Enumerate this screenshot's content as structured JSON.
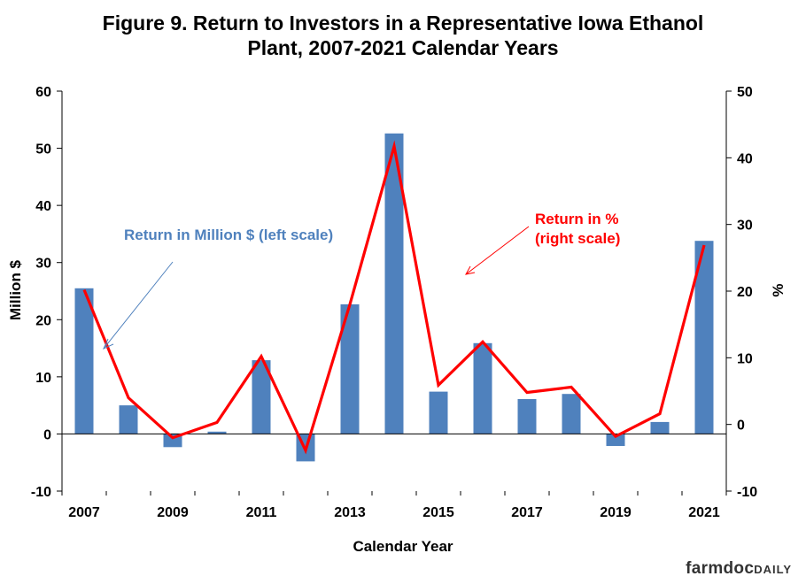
{
  "chart_data": {
    "type": "bar+line",
    "title_line1": "Figure 9. Return to Investors in a Representative Iowa Ethanol",
    "title_line2": "Plant, 2007-2021 Calendar Years",
    "xlabel": "Calendar Year",
    "ylabel_left": "Million $",
    "ylabel_right": "%",
    "years": [
      2007,
      2008,
      2009,
      2010,
      2011,
      2012,
      2013,
      2014,
      2015,
      2016,
      2017,
      2018,
      2019,
      2020,
      2021
    ],
    "x_tick_labels": [
      "2007",
      "2009",
      "2011",
      "2013",
      "2015",
      "2017",
      "2019",
      "2021"
    ],
    "y_left_ticks": [
      "60",
      "50",
      "40",
      "30",
      "20",
      "10",
      "0",
      "-10"
    ],
    "y_right_ticks": [
      "50",
      "40",
      "30",
      "20",
      "10",
      "0",
      "-10"
    ],
    "ylim_left": [
      -10,
      60
    ],
    "ylim_right": [
      -10,
      50
    ],
    "series": [
      {
        "name": "Return in Million $ (left scale)",
        "kind": "bar",
        "axis": "left",
        "color": "#4f81bd",
        "values": [
          25.5,
          5.0,
          -2.3,
          0.4,
          12.9,
          -4.8,
          22.7,
          52.6,
          7.4,
          15.9,
          6.1,
          7.0,
          -2.1,
          2.1,
          33.8
        ]
      },
      {
        "name_line1": "Return in %",
        "name_line2": "(right scale)",
        "kind": "line",
        "axis": "right",
        "color": "#ff0000",
        "values": [
          20.2,
          4.0,
          -2.0,
          0.3,
          10.2,
          -3.9,
          18.0,
          41.7,
          5.9,
          12.4,
          4.8,
          5.6,
          -1.8,
          1.6,
          26.9
        ]
      }
    ],
    "grid": false
  },
  "brand": {
    "part1": "farmdoc",
    "part2": "DAILY"
  }
}
